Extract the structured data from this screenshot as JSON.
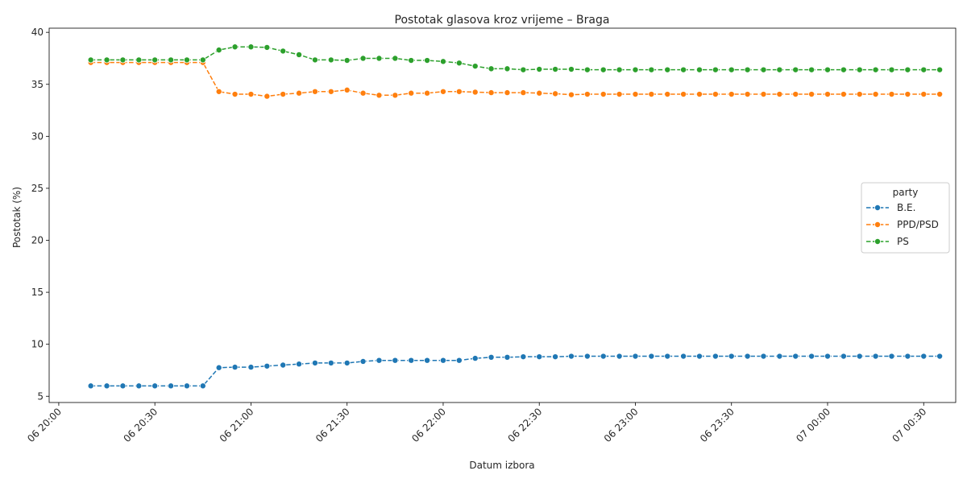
{
  "chart_data": {
    "type": "line",
    "title": "Postotak glasova kroz vrijeme – Braga",
    "xlabel": "Datum izbora",
    "ylabel": "Postotak (%)",
    "legend_title": "party",
    "legend_position": "center-right",
    "grid": false,
    "x_start": "06 20:10",
    "x_step_minutes": 5,
    "xlim": [
      "06 19:57",
      "07 00:40"
    ],
    "ylim": [
      4.4,
      40.4
    ],
    "x_ticks": [
      "06 20:00",
      "06 20:30",
      "06 21:00",
      "06 21:30",
      "06 22:00",
      "06 22:30",
      "06 23:00",
      "06 23:30",
      "07 00:00",
      "07 00:30"
    ],
    "y_ticks": [
      5,
      10,
      15,
      20,
      25,
      30,
      35,
      40
    ],
    "series": [
      {
        "name": "B.E.",
        "color": "#1f77b4",
        "values": [
          6.0,
          6.0,
          6.0,
          6.0,
          6.0,
          6.0,
          6.0,
          6.0,
          7.75,
          7.8,
          7.8,
          7.9,
          8.0,
          8.1,
          8.2,
          8.2,
          8.2,
          8.35,
          8.45,
          8.45,
          8.45,
          8.45,
          8.45,
          8.45,
          8.65,
          8.75,
          8.75,
          8.8,
          8.8,
          8.8,
          8.85,
          8.85,
          8.85,
          8.85,
          8.85,
          8.85,
          8.85,
          8.85,
          8.85,
          8.85,
          8.85,
          8.85,
          8.85,
          8.85,
          8.85,
          8.85,
          8.85,
          8.85,
          8.85,
          8.85,
          8.85,
          8.85,
          8.85,
          8.85
        ]
      },
      {
        "name": "PPD/PSD",
        "color": "#ff7f0e",
        "values": [
          37.1,
          37.1,
          37.1,
          37.1,
          37.1,
          37.1,
          37.1,
          37.1,
          34.3,
          34.05,
          34.05,
          33.85,
          34.05,
          34.15,
          34.3,
          34.3,
          34.45,
          34.15,
          33.95,
          33.95,
          34.15,
          34.15,
          34.3,
          34.3,
          34.25,
          34.2,
          34.2,
          34.2,
          34.15,
          34.1,
          34.0,
          34.05,
          34.05,
          34.05,
          34.05,
          34.05,
          34.05,
          34.05,
          34.05,
          34.05,
          34.05,
          34.05,
          34.05,
          34.05,
          34.05,
          34.05,
          34.05,
          34.05,
          34.05,
          34.05,
          34.05,
          34.05,
          34.05,
          34.05
        ]
      },
      {
        "name": "PS",
        "color": "#2ca02c",
        "values": [
          37.35,
          37.35,
          37.35,
          37.35,
          37.35,
          37.35,
          37.35,
          37.35,
          38.3,
          38.6,
          38.6,
          38.55,
          38.2,
          37.85,
          37.35,
          37.35,
          37.3,
          37.5,
          37.5,
          37.5,
          37.3,
          37.3,
          37.2,
          37.05,
          36.75,
          36.5,
          36.5,
          36.4,
          36.45,
          36.45,
          36.45,
          36.4,
          36.4,
          36.4,
          36.4,
          36.4,
          36.4,
          36.4,
          36.4,
          36.4,
          36.4,
          36.4,
          36.4,
          36.4,
          36.4,
          36.4,
          36.4,
          36.4,
          36.4,
          36.4,
          36.4,
          36.4,
          36.4,
          36.4
        ]
      }
    ]
  }
}
